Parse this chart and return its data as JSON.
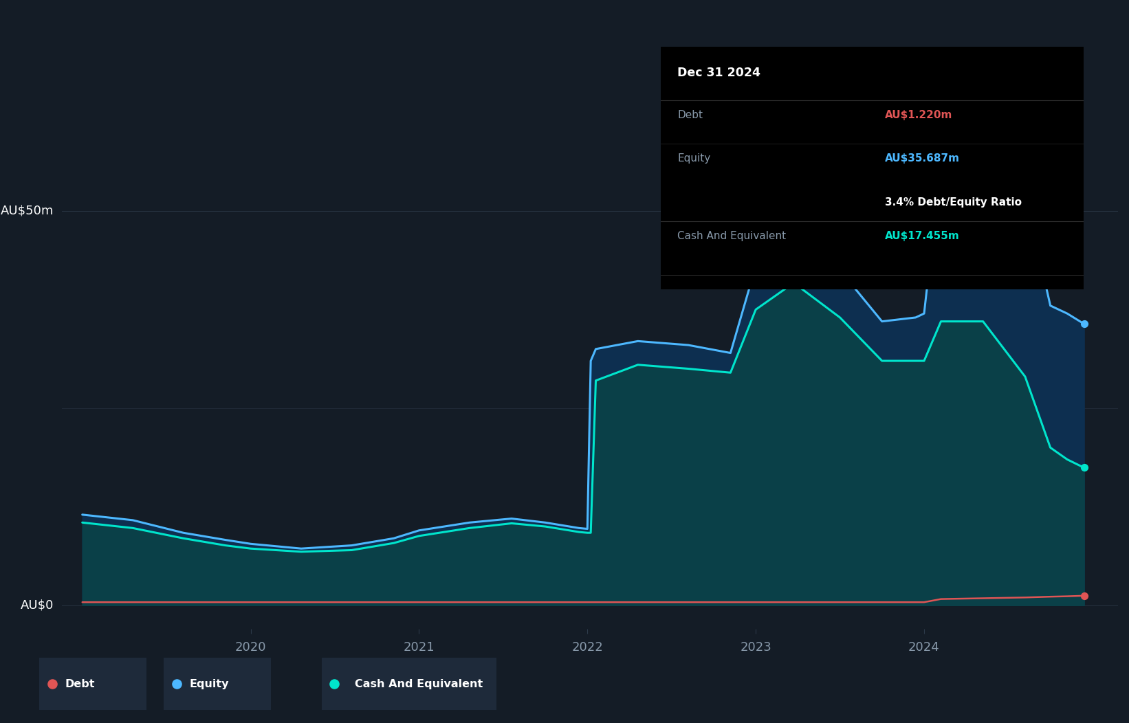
{
  "background_color": "#141C26",
  "plot_bg_color": "#141C26",
  "grid_color": "#2d3a4a",
  "text_color": "#ffffff",
  "label_color": "#8899aa",
  "debt_color": "#e05555",
  "equity_color": "#4db8ff",
  "cash_color": "#00e5cc",
  "equity_fill": "#0d2f50",
  "cash_fill": "#0a4048",
  "tooltip": {
    "date": "Dec 31 2024",
    "debt_label": "Debt",
    "debt_value": "AU$1.220m",
    "debt_color": "#e05555",
    "equity_label": "Equity",
    "equity_value": "AU$35.687m",
    "equity_color": "#4db8ff",
    "ratio_text": "3.4% Debt/Equity Ratio",
    "cash_label": "Cash And Equivalent",
    "cash_value": "AU$17.455m",
    "cash_color": "#00e5cc"
  },
  "legend": [
    {
      "label": "Debt",
      "color": "#e05555"
    },
    {
      "label": "Equity",
      "color": "#4db8ff"
    },
    {
      "label": "Cash And Equivalent",
      "color": "#00e5cc"
    }
  ],
  "dates": [
    2019.0,
    2019.3,
    2019.6,
    2019.85,
    2020.0,
    2020.3,
    2020.6,
    2020.85,
    2021.0,
    2021.3,
    2021.55,
    2021.75,
    2021.95,
    2022.0,
    2022.02,
    2022.05,
    2022.3,
    2022.6,
    2022.85,
    2023.0,
    2023.2,
    2023.25,
    2023.5,
    2023.75,
    2023.95,
    2024.0,
    2024.1,
    2024.35,
    2024.6,
    2024.75,
    2024.85,
    2024.95
  ],
  "equity": [
    11.5,
    10.8,
    9.2,
    8.3,
    7.8,
    7.2,
    7.6,
    8.5,
    9.5,
    10.5,
    11.0,
    10.5,
    9.8,
    9.7,
    31.0,
    32.5,
    33.5,
    33.0,
    32.0,
    43.0,
    46.5,
    46.5,
    42.5,
    36.0,
    36.5,
    37.0,
    56.0,
    56.0,
    52.0,
    38.0,
    37.0,
    35.687
  ],
  "cash": [
    10.5,
    9.8,
    8.5,
    7.6,
    7.2,
    6.8,
    7.0,
    7.9,
    8.8,
    9.8,
    10.4,
    10.0,
    9.3,
    9.2,
    9.2,
    28.5,
    30.5,
    30.0,
    29.5,
    37.5,
    40.5,
    40.5,
    36.5,
    31.0,
    31.0,
    31.0,
    36.0,
    36.0,
    29.0,
    20.0,
    18.5,
    17.455
  ],
  "debt": [
    0.4,
    0.4,
    0.4,
    0.4,
    0.4,
    0.4,
    0.4,
    0.4,
    0.4,
    0.4,
    0.4,
    0.4,
    0.4,
    0.4,
    0.4,
    0.4,
    0.4,
    0.4,
    0.4,
    0.4,
    0.4,
    0.4,
    0.4,
    0.4,
    0.4,
    0.4,
    0.8,
    0.9,
    1.0,
    1.1,
    1.15,
    1.22
  ],
  "ylim_min": -3,
  "ylim_max": 63,
  "xlim_min": 2018.88,
  "xlim_max": 2025.15,
  "y_label_0": "AU$0",
  "y_label_50": "AU$50m",
  "x_tick_positions": [
    2020,
    2021,
    2022,
    2023,
    2024
  ],
  "x_tick_labels": [
    "2020",
    "2021",
    "2022",
    "2023",
    "2024"
  ]
}
